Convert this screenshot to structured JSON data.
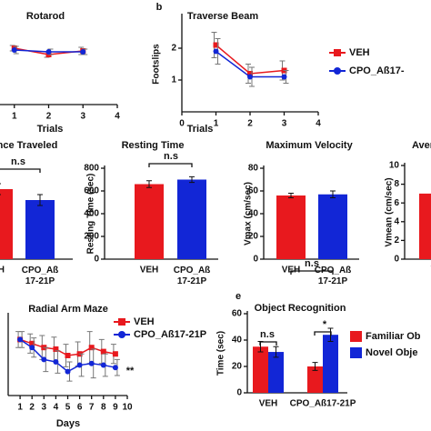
{
  "chart_data": [
    {
      "type": "line",
      "title": "Rotarod",
      "x_label": "Trials",
      "x": [
        1,
        2,
        3
      ],
      "xlim": [
        0,
        4
      ],
      "xticks": [
        1,
        2,
        3,
        4
      ],
      "ylim": [
        0,
        100
      ],
      "series": [
        {
          "color": "#e8191e",
          "values": [
            62,
            55,
            59
          ],
          "errors": [
            3,
            3,
            4
          ]
        },
        {
          "color": "#1226d6",
          "values": [
            60,
            58,
            58
          ],
          "errors": [
            4,
            3,
            3
          ]
        }
      ]
    },
    {
      "type": "line",
      "panel": "b",
      "title": "Traverse Beam",
      "x_label": "Trials",
      "y_label": "Footslips",
      "x": [
        1,
        2,
        3
      ],
      "xlim": [
        0,
        4
      ],
      "xticks": [
        0,
        1,
        2,
        3,
        4
      ],
      "ylim": [
        0,
        3
      ],
      "yticks": [
        1,
        2
      ],
      "series": [
        {
          "name": "VEH",
          "color": "#e8191e",
          "values": [
            2.1,
            1.2,
            1.3
          ],
          "errors": [
            0.4,
            0.3,
            0.3
          ]
        },
        {
          "name": "CPO_Aß17-",
          "color": "#1226d6",
          "values": [
            1.9,
            1.1,
            1.1
          ],
          "errors": [
            0.4,
            0.3,
            0.2
          ]
        }
      ]
    },
    {
      "type": "bar",
      "title": "nce Traveled",
      "categories": [
        "EH",
        "CPO_Aß 17-21P"
      ],
      "values": [
        77,
        65
      ],
      "errors": [
        6,
        6
      ],
      "colors": [
        "#e8191e",
        "#1226d6"
      ],
      "ylim": [
        0,
        100
      ],
      "annotations": [
        "n.s"
      ]
    },
    {
      "type": "bar",
      "title": "Resting Time",
      "y_label": "Resting Time (sec)",
      "categories": [
        "VEH",
        "CPO_Aß 17-21P"
      ],
      "values": [
        660,
        700
      ],
      "errors": [
        30,
        25
      ],
      "colors": [
        "#e8191e",
        "#1226d6"
      ],
      "ylim": [
        0,
        800
      ],
      "yticks": [
        0,
        200,
        400,
        600,
        800
      ],
      "annotations": [
        "n.s"
      ]
    },
    {
      "type": "bar",
      "title": "Maximum Velocity",
      "y_label": "Vmax (cm/sec)",
      "categories": [
        "VEH",
        "CPO_Aß 17-21P"
      ],
      "values": [
        56,
        57
      ],
      "errors": [
        2,
        3
      ],
      "colors": [
        "#e8191e",
        "#1226d6"
      ],
      "ylim": [
        0,
        80
      ],
      "yticks": [
        0,
        20,
        40,
        60,
        80
      ],
      "annotations": [
        "n.s"
      ]
    },
    {
      "type": "bar",
      "title": "Aver",
      "y_label": "Vmean (cm/sec)",
      "categories": [
        "V"
      ],
      "values": [
        7.0
      ],
      "errors": [
        0.3
      ],
      "colors": [
        "#e8191e"
      ],
      "ylim": [
        0,
        10
      ],
      "yticks": [
        0,
        2,
        4,
        6,
        8,
        10
      ]
    },
    {
      "type": "line",
      "title": "Radial Arm Maze",
      "x_label": "Days",
      "x": [
        1,
        2,
        3,
        4,
        5,
        6,
        7,
        8,
        9
      ],
      "xlim": [
        0,
        10
      ],
      "xticks": [
        1,
        2,
        3,
        4,
        5,
        6,
        7,
        8,
        9,
        10
      ],
      "ylim": [
        0,
        10
      ],
      "series": [
        {
          "name": "VEH",
          "color": "#e8191e",
          "values": [
            7,
            6.5,
            6,
            5.8,
            5,
            5.2,
            6,
            5.5,
            5.2
          ],
          "errors": [
            1,
            1.2,
            1.5,
            1.5,
            1.4,
            1.5,
            2,
            1.5,
            1.2
          ]
        },
        {
          "name": "CPO_Aß17-21P",
          "color": "#1226d6",
          "values": [
            7,
            6,
            4.5,
            4.2,
            3,
            3.8,
            4,
            3.8,
            3.5
          ],
          "errors": [
            1,
            1.2,
            1.5,
            1.4,
            1.2,
            1.4,
            1.8,
            1.4,
            1
          ]
        }
      ],
      "annotations": [
        "**"
      ]
    },
    {
      "type": "bar",
      "panel": "e",
      "title": "Object Recognition",
      "y_label": "Time (sec)",
      "categories": [
        "VEH",
        "CPO_Aß17-21P"
      ],
      "ylim": [
        0,
        60
      ],
      "yticks": [
        0,
        20,
        40,
        60
      ],
      "series": [
        {
          "name": "Familiar Ob",
          "color": "#e8191e",
          "values": [
            35,
            20
          ],
          "errors": [
            4,
            3
          ]
        },
        {
          "name": "Novel Obje",
          "color": "#1226d6",
          "values": [
            31,
            44
          ],
          "errors": [
            4,
            5
          ]
        }
      ],
      "annotations": [
        "n.s",
        "*"
      ]
    }
  ]
}
